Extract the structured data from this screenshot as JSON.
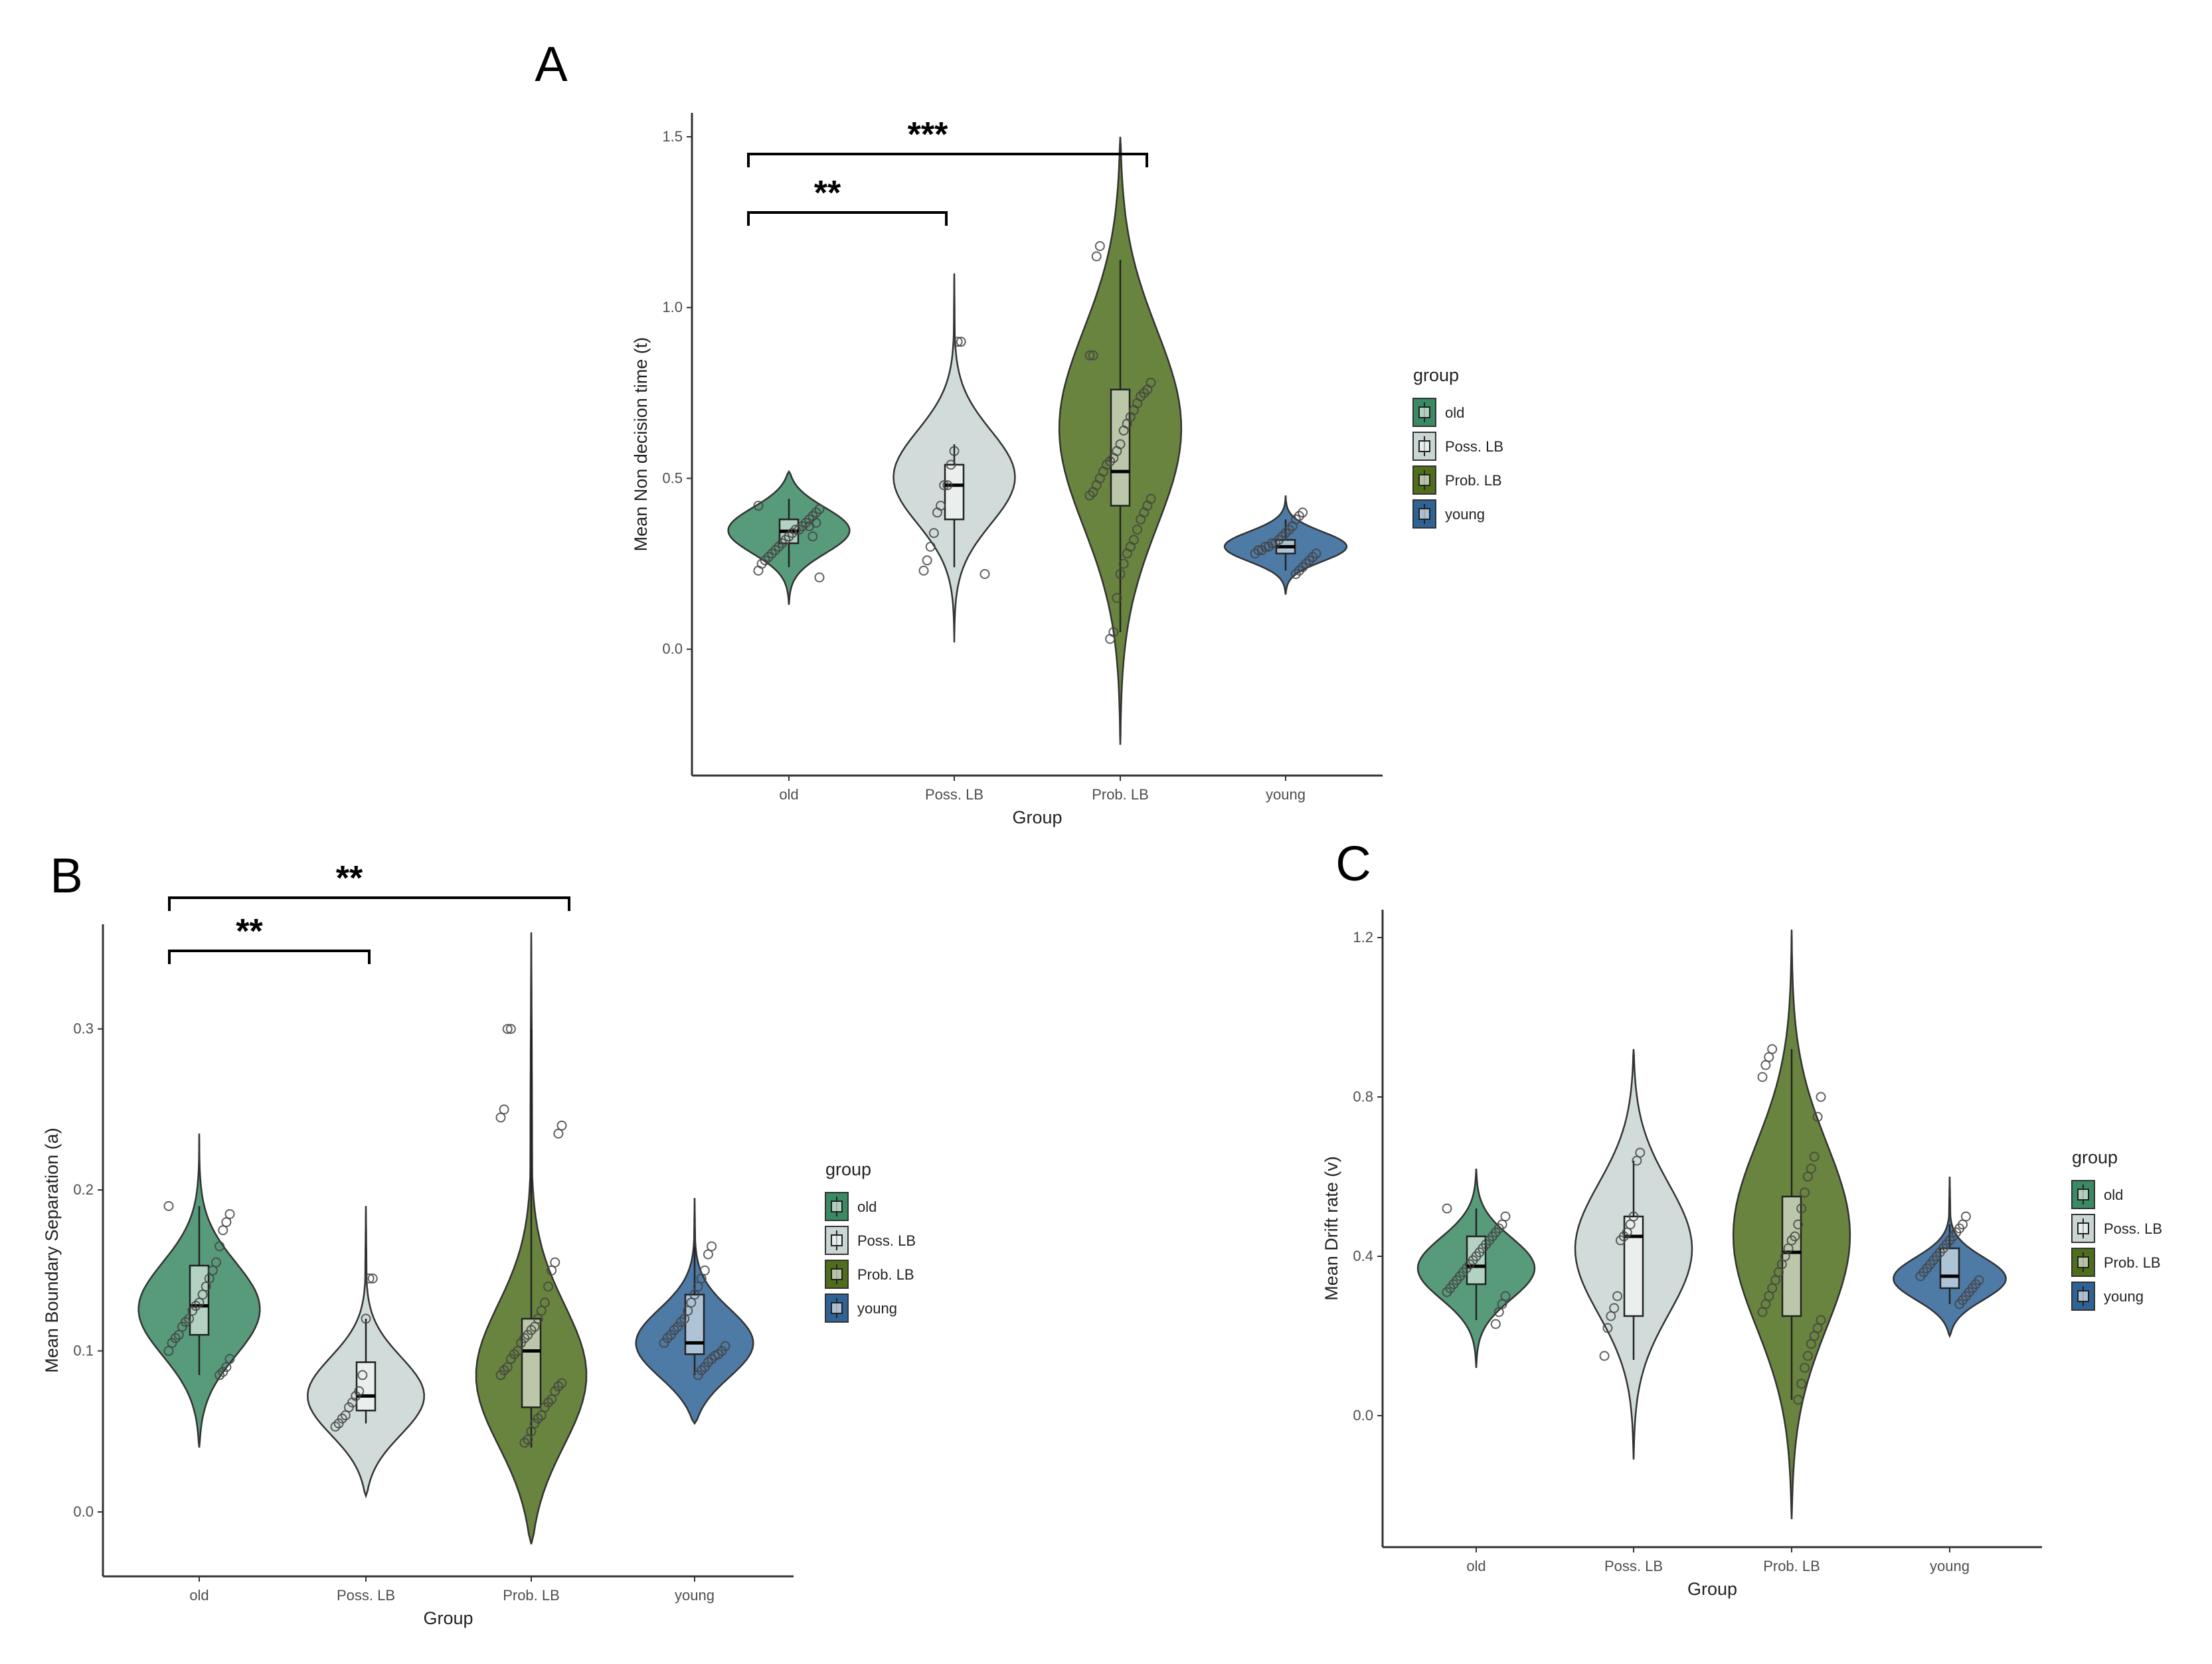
{
  "figure": {
    "panel_labels": [
      "A",
      "B",
      "C"
    ]
  },
  "legend": {
    "title": "group",
    "entries": [
      "old",
      "Poss. LB",
      "Prob. LB",
      "young"
    ]
  },
  "colors": {
    "old": "#3a8a63",
    "Poss. LB": "#c9d6d4",
    "Prob. LB": "#4f6e1c",
    "young": "#2f6396"
  },
  "chart_data": [
    {
      "panel": "A",
      "type": "violin",
      "xlabel": "Group",
      "ylabel": "Mean Non decision time (t)",
      "categories": [
        "old",
        "Poss. LB",
        "Prob. LB",
        "young"
      ],
      "yticks": [
        0.0,
        0.5,
        1.0,
        1.5
      ],
      "ytick_labels": [
        "0.0",
        "0.5",
        "1.0",
        "1.5"
      ],
      "ylim": [
        -0.37,
        1.57
      ],
      "series": [
        {
          "name": "old",
          "median": 0.345,
          "q1": 0.31,
          "q3": 0.38,
          "whisker_low": 0.24,
          "whisker_high": 0.44,
          "range": [
            0.13,
            0.52
          ],
          "mode": 0.35,
          "sd": 0.07,
          "points": [
            0.42,
            0.41,
            0.4,
            0.39,
            0.38,
            0.37,
            0.36,
            0.35,
            0.35,
            0.34,
            0.33,
            0.32,
            0.31,
            0.3,
            0.29,
            0.28,
            0.27,
            0.26,
            0.25,
            0.23,
            0.21,
            0.37,
            0.33,
            0.36
          ]
        },
        {
          "name": "Poss. LB",
          "median": 0.48,
          "q1": 0.38,
          "q3": 0.54,
          "whisker_low": 0.24,
          "whisker_high": 0.6,
          "range": [
            0.02,
            1.1
          ],
          "mode": 0.5,
          "sd": 0.14,
          "points": [
            0.9,
            0.9,
            0.58,
            0.54,
            0.48,
            0.48,
            0.42,
            0.4,
            0.34,
            0.3,
            0.26,
            0.23,
            0.22
          ]
        },
        {
          "name": "Prob. LB",
          "median": 0.52,
          "q1": 0.42,
          "q3": 0.76,
          "whisker_low": 0.05,
          "whisker_high": 1.14,
          "range": [
            -0.28,
            1.5
          ],
          "mode": 0.65,
          "sd": 0.3,
          "points": [
            1.18,
            1.15,
            0.86,
            0.86,
            0.78,
            0.76,
            0.75,
            0.74,
            0.72,
            0.7,
            0.68,
            0.66,
            0.64,
            0.6,
            0.58,
            0.56,
            0.55,
            0.54,
            0.52,
            0.5,
            0.48,
            0.46,
            0.45,
            0.44,
            0.42,
            0.4,
            0.38,
            0.35,
            0.32,
            0.3,
            0.28,
            0.25,
            0.22,
            0.15,
            0.05,
            0.03
          ]
        },
        {
          "name": "young",
          "median": 0.3,
          "q1": 0.28,
          "q3": 0.32,
          "whisker_low": 0.23,
          "whisker_high": 0.38,
          "range": [
            0.16,
            0.45
          ],
          "mode": 0.3,
          "sd": 0.045,
          "points": [
            0.4,
            0.39,
            0.38,
            0.36,
            0.35,
            0.34,
            0.33,
            0.32,
            0.31,
            0.31,
            0.3,
            0.3,
            0.29,
            0.29,
            0.28,
            0.28,
            0.27,
            0.26,
            0.25,
            0.24,
            0.23,
            0.22
          ]
        }
      ],
      "significance": [
        {
          "from": "old",
          "to": "Poss. LB",
          "label": "**",
          "level": 1
        },
        {
          "from": "old",
          "to": "Prob. LB",
          "label": "***",
          "level": 2
        }
      ]
    },
    {
      "panel": "B",
      "type": "violin",
      "xlabel": "Group",
      "ylabel": "Mean Boundary Separation (a)",
      "categories": [
        "old",
        "Poss. LB",
        "Prob. LB",
        "young"
      ],
      "yticks": [
        0.0,
        0.1,
        0.2,
        0.3
      ],
      "ytick_labels": [
        "0.0",
        "0.1",
        "0.2",
        "0.3"
      ],
      "ylim": [
        -0.04,
        0.365
      ],
      "series": [
        {
          "name": "old",
          "median": 0.128,
          "q1": 0.11,
          "q3": 0.153,
          "whisker_low": 0.085,
          "whisker_high": 0.19,
          "range": [
            0.04,
            0.235
          ],
          "mode": 0.125,
          "sd": 0.03,
          "points": [
            0.19,
            0.185,
            0.18,
            0.175,
            0.165,
            0.155,
            0.15,
            0.145,
            0.14,
            0.135,
            0.13,
            0.128,
            0.125,
            0.12,
            0.118,
            0.115,
            0.11,
            0.108,
            0.105,
            0.1,
            0.095,
            0.09,
            0.087,
            0.085
          ]
        },
        {
          "name": "Poss. LB",
          "median": 0.072,
          "q1": 0.063,
          "q3": 0.093,
          "whisker_low": 0.055,
          "whisker_high": 0.12,
          "range": [
            0.01,
            0.19
          ],
          "mode": 0.07,
          "sd": 0.025,
          "points": [
            0.145,
            0.145,
            0.12,
            0.085,
            0.075,
            0.072,
            0.068,
            0.065,
            0.06,
            0.058,
            0.055,
            0.053
          ]
        },
        {
          "name": "Prob. LB",
          "median": 0.1,
          "q1": 0.065,
          "q3": 0.12,
          "whisker_low": 0.04,
          "whisker_high": 0.3,
          "range": [
            -0.02,
            0.36
          ],
          "mode": 0.08,
          "sd": 0.045,
          "points": [
            0.3,
            0.3,
            0.25,
            0.245,
            0.24,
            0.235,
            0.155,
            0.15,
            0.14,
            0.13,
            0.125,
            0.12,
            0.115,
            0.113,
            0.11,
            0.108,
            0.105,
            0.1,
            0.098,
            0.095,
            0.09,
            0.088,
            0.085,
            0.08,
            0.078,
            0.075,
            0.07,
            0.068,
            0.065,
            0.06,
            0.058,
            0.055,
            0.05,
            0.045,
            0.043
          ]
        },
        {
          "name": "young",
          "median": 0.105,
          "q1": 0.098,
          "q3": 0.135,
          "whisker_low": 0.085,
          "whisker_high": 0.165,
          "range": [
            0.055,
            0.195
          ],
          "mode": 0.103,
          "sd": 0.022,
          "points": [
            0.165,
            0.16,
            0.15,
            0.145,
            0.14,
            0.135,
            0.13,
            0.125,
            0.12,
            0.118,
            0.115,
            0.113,
            0.11,
            0.108,
            0.105,
            0.103,
            0.1,
            0.098,
            0.097,
            0.095,
            0.093,
            0.09,
            0.088,
            0.085
          ]
        }
      ],
      "significance": [
        {
          "from": "old",
          "to": "Poss. LB",
          "label": "**",
          "level": 1
        },
        {
          "from": "old",
          "to": "Prob. LB",
          "label": "**",
          "level": 2
        }
      ]
    },
    {
      "panel": "C",
      "type": "violin",
      "xlabel": "Group",
      "ylabel": "Mean Drift rate (v)",
      "categories": [
        "old",
        "Poss. LB",
        "Prob. LB",
        "young"
      ],
      "yticks": [
        0.0,
        0.4,
        0.8,
        1.2
      ],
      "ytick_labels": [
        "0.0",
        "0.4",
        "0.8",
        "1.2"
      ],
      "ylim": [
        -0.33,
        1.27
      ],
      "series": [
        {
          "name": "old",
          "median": 0.375,
          "q1": 0.33,
          "q3": 0.45,
          "whisker_low": 0.24,
          "whisker_high": 0.52,
          "range": [
            0.12,
            0.62
          ],
          "mode": 0.37,
          "sd": 0.08,
          "points": [
            0.52,
            0.5,
            0.48,
            0.47,
            0.46,
            0.45,
            0.44,
            0.43,
            0.42,
            0.41,
            0.4,
            0.39,
            0.38,
            0.37,
            0.36,
            0.35,
            0.34,
            0.33,
            0.32,
            0.31,
            0.3,
            0.28,
            0.26,
            0.23
          ]
        },
        {
          "name": "Poss. LB",
          "median": 0.45,
          "q1": 0.25,
          "q3": 0.5,
          "whisker_low": 0.14,
          "whisker_high": 0.64,
          "range": [
            -0.11,
            0.92
          ],
          "mode": 0.42,
          "sd": 0.17,
          "points": [
            0.66,
            0.64,
            0.5,
            0.48,
            0.46,
            0.45,
            0.44,
            0.3,
            0.27,
            0.25,
            0.22,
            0.15
          ]
        },
        {
          "name": "Prob. LB",
          "median": 0.41,
          "q1": 0.25,
          "q3": 0.55,
          "whisker_low": 0.04,
          "whisker_high": 0.92,
          "range": [
            -0.26,
            1.22
          ],
          "mode": 0.45,
          "sd": 0.24,
          "points": [
            0.92,
            0.9,
            0.88,
            0.85,
            0.8,
            0.75,
            0.65,
            0.62,
            0.6,
            0.56,
            0.52,
            0.48,
            0.45,
            0.44,
            0.42,
            0.4,
            0.38,
            0.36,
            0.34,
            0.32,
            0.3,
            0.28,
            0.26,
            0.24,
            0.22,
            0.2,
            0.18,
            0.15,
            0.12,
            0.08,
            0.04
          ]
        },
        {
          "name": "young",
          "median": 0.35,
          "q1": 0.32,
          "q3": 0.42,
          "whisker_low": 0.28,
          "whisker_high": 0.48,
          "range": [
            0.2,
            0.6
          ],
          "mode": 0.34,
          "sd": 0.055,
          "points": [
            0.5,
            0.48,
            0.47,
            0.46,
            0.45,
            0.44,
            0.43,
            0.42,
            0.41,
            0.4,
            0.39,
            0.38,
            0.37,
            0.36,
            0.35,
            0.34,
            0.33,
            0.32,
            0.31,
            0.3,
            0.29,
            0.28
          ]
        }
      ],
      "significance": []
    }
  ]
}
